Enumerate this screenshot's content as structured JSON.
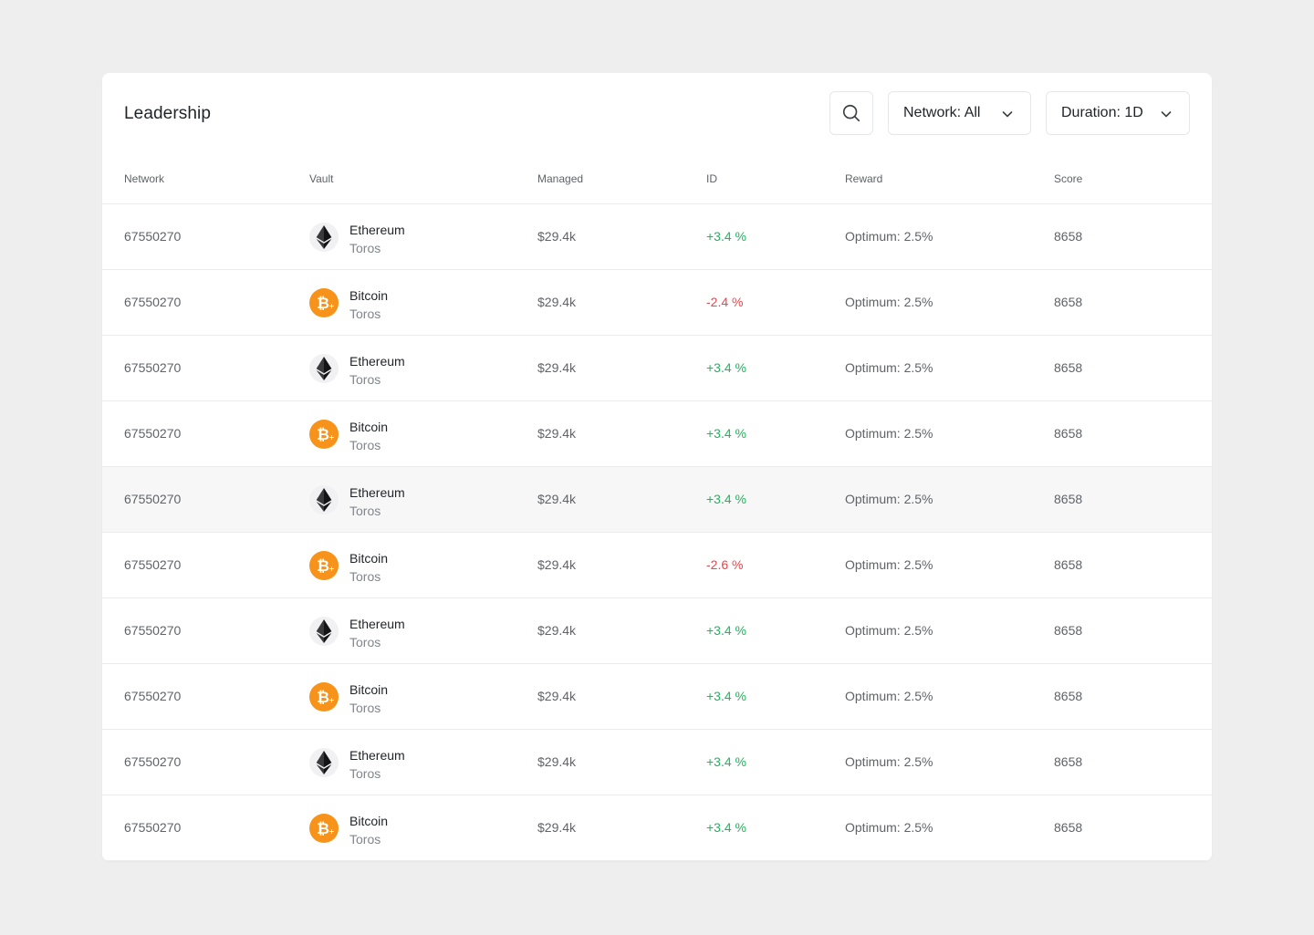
{
  "header": {
    "title": "Leadership",
    "network_filter": "Network: All",
    "duration_filter": "Duration: 1D"
  },
  "columns": {
    "network": "Network",
    "vault": "Vault",
    "managed": "Managed",
    "id": "ID",
    "reward": "Reward",
    "score": "Score"
  },
  "colors": {
    "positive": "#22b35e",
    "negative": "#e5484d",
    "bitcoin": "#f7931a"
  },
  "rows": [
    {
      "network": "67550270",
      "coin": "ethereum",
      "vault_name": "Ethereum",
      "vault_sub": "Toros",
      "managed": "$29.4k",
      "id": "+3.4 %",
      "trend": "pos",
      "reward": "Optimum: 2.5%",
      "score": "8658"
    },
    {
      "network": "67550270",
      "coin": "bitcoin",
      "vault_name": "Bitcoin",
      "vault_sub": "Toros",
      "managed": "$29.4k",
      "id": "-2.4 %",
      "trend": "neg",
      "reward": "Optimum: 2.5%",
      "score": "8658"
    },
    {
      "network": "67550270",
      "coin": "ethereum",
      "vault_name": "Ethereum",
      "vault_sub": "Toros",
      "managed": "$29.4k",
      "id": "+3.4 %",
      "trend": "pos",
      "reward": "Optimum: 2.5%",
      "score": "8658"
    },
    {
      "network": "67550270",
      "coin": "bitcoin",
      "vault_name": "Bitcoin",
      "vault_sub": "Toros",
      "managed": "$29.4k",
      "id": "+3.4 %",
      "trend": "pos",
      "reward": "Optimum: 2.5%",
      "score": "8658"
    },
    {
      "network": "67550270",
      "coin": "ethereum",
      "vault_name": "Ethereum",
      "vault_sub": "Toros",
      "managed": "$29.4k",
      "id": "+3.4 %",
      "trend": "pos",
      "reward": "Optimum: 2.5%",
      "score": "8658",
      "hovered": true
    },
    {
      "network": "67550270",
      "coin": "bitcoin",
      "vault_name": "Bitcoin",
      "vault_sub": "Toros",
      "managed": "$29.4k",
      "id": "-2.6 %",
      "trend": "neg",
      "reward": "Optimum: 2.5%",
      "score": "8658"
    },
    {
      "network": "67550270",
      "coin": "ethereum",
      "vault_name": "Ethereum",
      "vault_sub": "Toros",
      "managed": "$29.4k",
      "id": "+3.4 %",
      "trend": "pos",
      "reward": "Optimum: 2.5%",
      "score": "8658"
    },
    {
      "network": "67550270",
      "coin": "bitcoin",
      "vault_name": "Bitcoin",
      "vault_sub": "Toros",
      "managed": "$29.4k",
      "id": "+3.4 %",
      "trend": "pos",
      "reward": "Optimum: 2.5%",
      "score": "8658"
    },
    {
      "network": "67550270",
      "coin": "ethereum",
      "vault_name": "Ethereum",
      "vault_sub": "Toros",
      "managed": "$29.4k",
      "id": "+3.4 %",
      "trend": "pos",
      "reward": "Optimum: 2.5%",
      "score": "8658"
    },
    {
      "network": "67550270",
      "coin": "bitcoin",
      "vault_name": "Bitcoin",
      "vault_sub": "Toros",
      "managed": "$29.4k",
      "id": "+3.4 %",
      "trend": "pos",
      "reward": "Optimum: 2.5%",
      "score": "8658"
    }
  ]
}
